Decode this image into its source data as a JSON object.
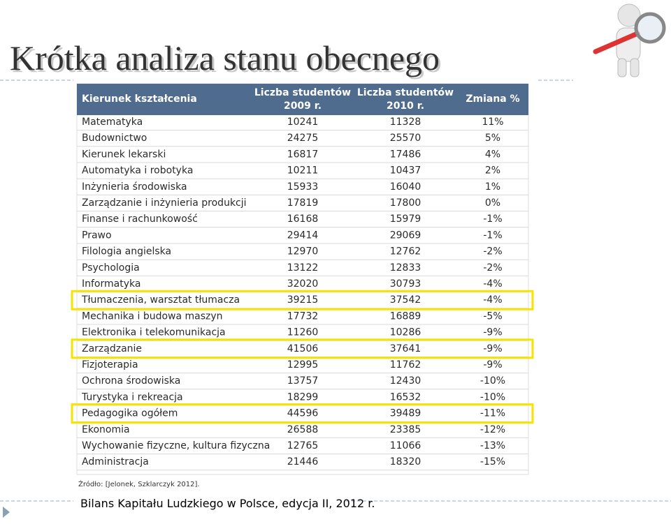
{
  "header": {
    "title": "Krótka analiza stanu obecnego"
  },
  "table": {
    "columns": [
      [
        "Kierunek kształcenia"
      ],
      [
        "Liczba studentów",
        "2009 r."
      ],
      [
        "Liczba studentów",
        "2010 r."
      ],
      [
        "Zmiana %"
      ]
    ],
    "rows": [
      {
        "name": "Matematyka",
        "y2009": 10241,
        "y2010": 11328,
        "change": "11%"
      },
      {
        "name": "Budownictwo",
        "y2009": 24275,
        "y2010": 25570,
        "change": "5%"
      },
      {
        "name": "Kierunek lekarski",
        "y2009": 16817,
        "y2010": 17486,
        "change": "4%"
      },
      {
        "name": "Automatyka i robotyka",
        "y2009": 10211,
        "y2010": 10437,
        "change": "2%"
      },
      {
        "name": "Inżynieria środowiska",
        "y2009": 15933,
        "y2010": 16040,
        "change": "1%"
      },
      {
        "name": "Zarządzanie i inżynieria produkcji",
        "y2009": 17819,
        "y2010": 17800,
        "change": "0%"
      },
      {
        "name": "Finanse i rachunkowość",
        "y2009": 16168,
        "y2010": 15979,
        "change": "-1%"
      },
      {
        "name": "Prawo",
        "y2009": 29414,
        "y2010": 29069,
        "change": "-1%"
      },
      {
        "name": "Filologia angielska",
        "y2009": 12970,
        "y2010": 12762,
        "change": "-2%"
      },
      {
        "name": "Psychologia",
        "y2009": 13122,
        "y2010": 12833,
        "change": "-2%"
      },
      {
        "name": "Informatyka",
        "y2009": 32020,
        "y2010": 30793,
        "change": "-4%"
      },
      {
        "name": "Tłumaczenia, warsztat tłumacza",
        "y2009": 39215,
        "y2010": 37542,
        "change": "-4%",
        "highlight": true
      },
      {
        "name": "Mechanika i budowa maszyn",
        "y2009": 17732,
        "y2010": 16889,
        "change": "-5%"
      },
      {
        "name": "Elektronika i telekomunikacja",
        "y2009": 11260,
        "y2010": 10286,
        "change": "-9%"
      },
      {
        "name": "Zarządzanie",
        "y2009": 41506,
        "y2010": 37641,
        "change": "-9%",
        "highlight": true
      },
      {
        "name": "Fizjoterapia",
        "y2009": 12995,
        "y2010": 11762,
        "change": "-9%"
      },
      {
        "name": "Ochrona środowiska",
        "y2009": 13757,
        "y2010": 12430,
        "change": "-10%"
      },
      {
        "name": "Turystyka i rekreacja",
        "y2009": 18299,
        "y2010": 16532,
        "change": "-10%"
      },
      {
        "name": "Pedagogika ogółem",
        "y2009": 44596,
        "y2010": 39489,
        "change": "-11%",
        "highlight": true
      },
      {
        "name": "Ekonomia",
        "y2009": 26588,
        "y2010": 23385,
        "change": "-12%"
      },
      {
        "name": "Wychowanie fizyczne, kultura fizyczna",
        "y2009": 12765,
        "y2010": 11066,
        "change": "-13%"
      },
      {
        "name": "Administracja",
        "y2009": 21446,
        "y2010": 18320,
        "change": "-15%"
      }
    ],
    "source": "Źródło: [Jelonek, Szklarczyk 2012]."
  },
  "footer": {
    "caption": "Bilans Kapitału Ludzkiego w Polsce, edycja II, 2012 r."
  }
}
